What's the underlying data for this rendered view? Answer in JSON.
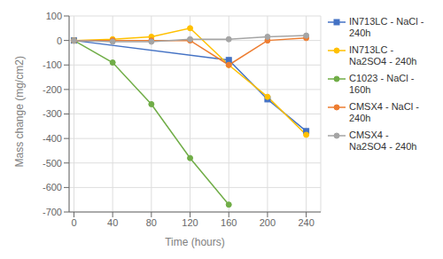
{
  "chart_data": {
    "type": "line",
    "xlabel": "Time (hours)",
    "ylabel": "Mass change (mg/cm2)",
    "xlim": [
      -5,
      255
    ],
    "ylim": [
      -700,
      100
    ],
    "xticks": [
      0,
      40,
      80,
      120,
      160,
      200,
      240
    ],
    "yticks": [
      -700,
      -600,
      -500,
      -400,
      -300,
      -200,
      -100,
      0,
      100
    ],
    "grid": true,
    "legend": "right",
    "series": [
      {
        "name": "IN713LC - NaCl -\n240h",
        "color": "#4472C4",
        "marker": "square",
        "x": [
          0,
          160,
          200,
          240
        ],
        "values": [
          0,
          -80,
          -240,
          -370
        ]
      },
      {
        "name": "IN713LC -\nNa2SO4 - 240h",
        "color": "#FFC000",
        "marker": "circle",
        "x": [
          0,
          40,
          80,
          120,
          160,
          200,
          240
        ],
        "values": [
          0,
          5,
          15,
          50,
          -100,
          -230,
          -385
        ]
      },
      {
        "name": "C1023 - NaCl -\n160h",
        "color": "#70AD47",
        "marker": "circle",
        "x": [
          0,
          40,
          80,
          120,
          160
        ],
        "values": [
          0,
          -90,
          -260,
          -480,
          -670
        ]
      },
      {
        "name": "CMSX4 - NaCl -\n240h",
        "color": "#ED7D31",
        "marker": "circle",
        "x": [
          0,
          40,
          80,
          120,
          160,
          200,
          240
        ],
        "values": [
          0,
          0,
          0,
          0,
          -100,
          0,
          10
        ]
      },
      {
        "name": "CMSX4 -\nNa2SO4 - 240h",
        "color": "#A5A5A5",
        "marker": "circle",
        "x": [
          0,
          40,
          80,
          120,
          160,
          200,
          240
        ],
        "values": [
          0,
          -5,
          -5,
          5,
          5,
          15,
          20
        ]
      }
    ]
  }
}
